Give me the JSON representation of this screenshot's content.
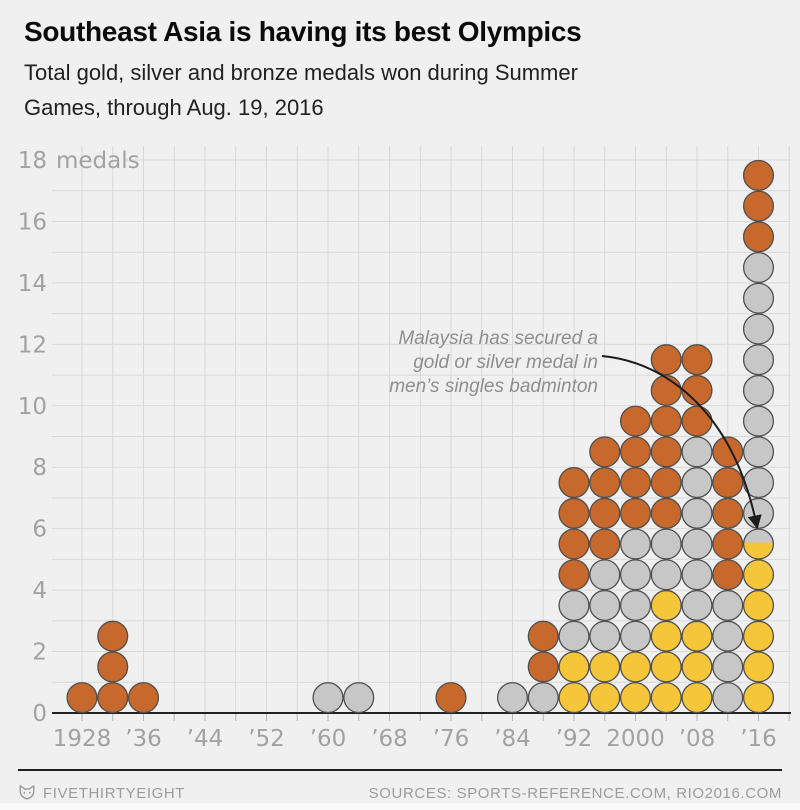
{
  "header": {
    "title": "Southeast Asia is having its best Olympics",
    "subtitle": "Total gold, silver and bronze medals won during Summer\nGames, through Aug. 19, 2016"
  },
  "footer": {
    "brand": "FIVETHIRTYEIGHT",
    "sources": "SOURCES: SPORTS-REFERENCE.COM, RIO2016.COM"
  },
  "chart_data": {
    "type": "stacked-dot",
    "title": "Southeast Asia is having its best Olympics",
    "subtitle": "Total gold, silver and bronze medals won during Summer Games, through Aug. 19, 2016",
    "ylabel": "",
    "xlabel": "",
    "ylim": [
      0,
      18
    ],
    "y_ticks": [
      0,
      2,
      4,
      6,
      8,
      10,
      12,
      14,
      16,
      18
    ],
    "y_unit_suffix": "medals",
    "grid": "on",
    "gridlines": {
      "horizontal_every_medals": 1,
      "vertical_every_years": 4,
      "x_grid_start": 1928,
      "x_grid_end": 2020
    },
    "x_tick_labels": [
      {
        "year": 1928,
        "label": "1928"
      },
      {
        "year": 1936,
        "label": "’36"
      },
      {
        "year": 1944,
        "label": "’44"
      },
      {
        "year": 1952,
        "label": "’52"
      },
      {
        "year": 1960,
        "label": "’60"
      },
      {
        "year": 1968,
        "label": "’68"
      },
      {
        "year": 1976,
        "label": "’76"
      },
      {
        "year": 1984,
        "label": "’84"
      },
      {
        "year": 1992,
        "label": "’92"
      },
      {
        "year": 2000,
        "label": "2000"
      },
      {
        "year": 2008,
        "label": "’08"
      },
      {
        "year": 2016,
        "label": "’16"
      }
    ],
    "colors": {
      "gold": "#f5c53a",
      "silver": "#c7c7c7",
      "bronze": "#c7692c",
      "dot_stroke": "#4f4f4f",
      "grid": "#d8d8d8",
      "axis": "#222222",
      "tick": "#b5b5b5",
      "axis_text": "#a2a2a2",
      "arrow": "#1c1c1c",
      "background": "#f0f0f0"
    },
    "columns": [
      {
        "year": 1928,
        "medals": [
          "bronze"
        ]
      },
      {
        "year": 1932,
        "medals": [
          "bronze",
          "bronze",
          "bronze"
        ]
      },
      {
        "year": 1936,
        "medals": [
          "bronze"
        ]
      },
      {
        "year": 1960,
        "medals": [
          "silver"
        ]
      },
      {
        "year": 1964,
        "medals": [
          "silver"
        ]
      },
      {
        "year": 1976,
        "medals": [
          "bronze"
        ]
      },
      {
        "year": 1984,
        "medals": [
          "silver"
        ]
      },
      {
        "year": 1988,
        "medals": [
          "silver",
          "bronze",
          "bronze"
        ]
      },
      {
        "year": 1992,
        "medals": [
          "gold",
          "gold",
          "silver",
          "silver",
          "bronze",
          "bronze",
          "bronze",
          "bronze"
        ]
      },
      {
        "year": 1996,
        "medals": [
          "gold",
          "gold",
          "silver",
          "silver",
          "silver",
          "bronze",
          "bronze",
          "bronze",
          "bronze"
        ]
      },
      {
        "year": 2000,
        "medals": [
          "gold",
          "gold",
          "silver",
          "silver",
          "silver",
          "silver",
          "bronze",
          "bronze",
          "bronze",
          "bronze"
        ]
      },
      {
        "year": 2004,
        "medals": [
          "gold",
          "gold",
          "gold",
          "gold",
          "silver",
          "silver",
          "bronze",
          "bronze",
          "bronze",
          "bronze",
          "bronze",
          "bronze"
        ]
      },
      {
        "year": 2008,
        "medals": [
          "gold",
          "gold",
          "gold",
          "silver",
          "silver",
          "silver",
          "silver",
          "silver",
          "silver",
          "bronze",
          "bronze",
          "bronze"
        ]
      },
      {
        "year": 2012,
        "medals": [
          "silver",
          "silver",
          "silver",
          "silver",
          "bronze",
          "bronze",
          "bronze",
          "bronze",
          "bronze"
        ]
      },
      {
        "year": 2016,
        "medals": [
          "gold",
          "gold",
          "gold",
          "gold",
          "gold",
          "gold_or_silver",
          "silver",
          "silver",
          "silver",
          "silver",
          "silver",
          "silver",
          "silver",
          "silver",
          "silver",
          "bronze",
          "bronze",
          "bronze"
        ]
      }
    ],
    "annotation": {
      "lines": [
        "Malaysia has secured a",
        "gold or silver medal in",
        "men’s singles badminton"
      ],
      "target": {
        "year": 2016,
        "medal_index": 6,
        "medal": "gold_or_silver"
      }
    }
  }
}
